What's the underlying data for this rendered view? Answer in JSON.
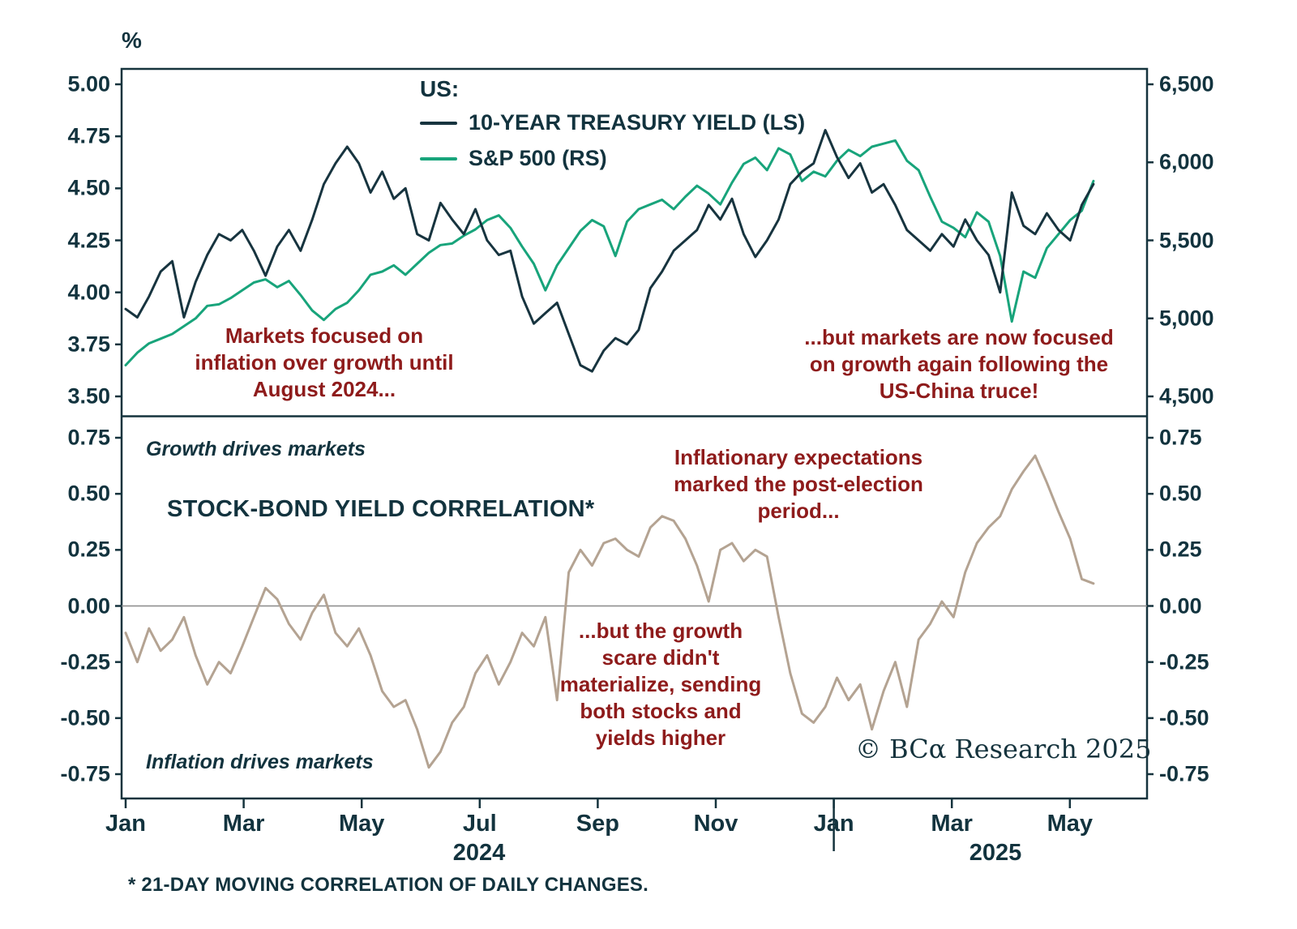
{
  "colors": {
    "ink": "#15333d",
    "text": "#12333e",
    "annotation_red": "#8e1b1b",
    "treasury_line": "#17343f",
    "sp500_line": "#18a47b",
    "correlation_line": "#b4a392",
    "zero_line": "#8a8a8a",
    "background": "#ffffff"
  },
  "chart_data": [
    {
      "type": "line",
      "panel": "top",
      "title": "US:",
      "left_axis": {
        "label": "%",
        "min": 3.5,
        "max": 5.0,
        "ticks": [
          "5.00",
          "4.75",
          "4.50",
          "4.25",
          "4.00",
          "3.75",
          "3.50"
        ]
      },
      "right_axis": {
        "min": 4500,
        "max": 6500,
        "ticks": [
          "6,500",
          "6,000",
          "5,500",
          "5,000",
          "4,500"
        ]
      },
      "series": [
        {
          "name": "10-YEAR TREASURY YIELD (LS)",
          "axis": "left",
          "color": "#17343f",
          "values": [
            3.92,
            3.88,
            3.98,
            4.1,
            4.15,
            3.88,
            4.05,
            4.18,
            4.28,
            4.25,
            4.3,
            4.2,
            4.08,
            4.22,
            4.3,
            4.2,
            4.35,
            4.52,
            4.62,
            4.7,
            4.62,
            4.48,
            4.58,
            4.45,
            4.5,
            4.28,
            4.25,
            4.43,
            4.35,
            4.28,
            4.4,
            4.25,
            4.18,
            4.2,
            3.98,
            3.85,
            3.9,
            3.95,
            3.8,
            3.65,
            3.62,
            3.72,
            3.78,
            3.75,
            3.82,
            4.02,
            4.1,
            4.2,
            4.25,
            4.3,
            4.42,
            4.35,
            4.45,
            4.28,
            4.17,
            4.25,
            4.35,
            4.52,
            4.58,
            4.62,
            4.78,
            4.65,
            4.55,
            4.62,
            4.48,
            4.52,
            4.42,
            4.3,
            4.25,
            4.2,
            4.28,
            4.22,
            4.35,
            4.25,
            4.18,
            4.0,
            4.48,
            4.32,
            4.28,
            4.38,
            4.3,
            4.25,
            4.42,
            4.52
          ]
        },
        {
          "name": "S&P 500 (RS)",
          "axis": "right",
          "color": "#18a47b",
          "values": [
            4700,
            4780,
            4840,
            4870,
            4900,
            4950,
            5000,
            5080,
            5090,
            5130,
            5180,
            5230,
            5250,
            5200,
            5240,
            5150,
            5050,
            4990,
            5060,
            5100,
            5180,
            5280,
            5300,
            5340,
            5280,
            5350,
            5420,
            5470,
            5480,
            5530,
            5570,
            5630,
            5660,
            5580,
            5460,
            5350,
            5180,
            5340,
            5450,
            5560,
            5630,
            5590,
            5400,
            5620,
            5700,
            5730,
            5760,
            5700,
            5780,
            5850,
            5800,
            5730,
            5870,
            5990,
            6030,
            5950,
            6090,
            6050,
            5880,
            5940,
            5910,
            6010,
            6080,
            6040,
            6100,
            6120,
            6140,
            6010,
            5950,
            5780,
            5620,
            5580,
            5520,
            5680,
            5620,
            5400,
            4980,
            5300,
            5260,
            5450,
            5540,
            5630,
            5690,
            5880
          ]
        }
      ],
      "annotations": [
        "Markets focused on\ninflation over growth until\nAugust 2024...",
        "...but markets are now focused\non growth again following the\nUS-China truce!"
      ]
    },
    {
      "type": "line",
      "panel": "bottom",
      "title": "STOCK-BOND YIELD CORRELATION*",
      "axis": {
        "min": -0.75,
        "max": 0.75,
        "ticks": [
          "0.75",
          "0.50",
          "0.25",
          "0.00",
          "-0.25",
          "-0.50",
          "-0.75"
        ]
      },
      "zero_line": true,
      "labels": {
        "top_left": "Growth drives markets",
        "bottom_left": "Inflation drives markets"
      },
      "series": [
        {
          "name": "21-day stock-bond yield correlation",
          "axis": "left",
          "color": "#b4a392",
          "values": [
            -0.12,
            -0.25,
            -0.1,
            -0.2,
            -0.15,
            -0.05,
            -0.22,
            -0.35,
            -0.25,
            -0.3,
            -0.18,
            -0.05,
            0.08,
            0.03,
            -0.08,
            -0.15,
            -0.03,
            0.05,
            -0.12,
            -0.18,
            -0.1,
            -0.22,
            -0.38,
            -0.45,
            -0.42,
            -0.55,
            -0.72,
            -0.65,
            -0.52,
            -0.45,
            -0.3,
            -0.22,
            -0.35,
            -0.25,
            -0.12,
            -0.18,
            -0.05,
            -0.42,
            0.15,
            0.25,
            0.18,
            0.28,
            0.3,
            0.25,
            0.22,
            0.35,
            0.4,
            0.38,
            0.3,
            0.18,
            0.02,
            0.25,
            0.28,
            0.2,
            0.25,
            0.22,
            -0.05,
            -0.3,
            -0.48,
            -0.52,
            -0.45,
            -0.32,
            -0.42,
            -0.35,
            -0.55,
            -0.38,
            -0.25,
            -0.45,
            -0.15,
            -0.08,
            0.02,
            -0.05,
            0.15,
            0.28,
            0.35,
            0.4,
            0.52,
            0.6,
            0.67,
            0.55,
            0.42,
            0.3,
            0.12,
            0.1
          ]
        }
      ],
      "annotations": [
        "Inflationary expectations\nmarked the post-election\nperiod...",
        "...but the growth\nscare didn't\nmaterialize, sending\nboth stocks and\nyields higher"
      ]
    }
  ],
  "x_axis": {
    "tick_labels": [
      "Jan",
      "Mar",
      "May",
      "Jul",
      "Sep",
      "Nov",
      "Jan",
      "Mar",
      "May"
    ],
    "tick_months": [
      0,
      2,
      4,
      6,
      8,
      10,
      12,
      14,
      16
    ],
    "year_labels": [
      "2024",
      "2025"
    ],
    "range_months": [
      0,
      16.4
    ]
  },
  "footnote": "* 21-DAY MOVING CORRELATION OF DAILY CHANGES.",
  "credit": "© BCα Research 2025"
}
